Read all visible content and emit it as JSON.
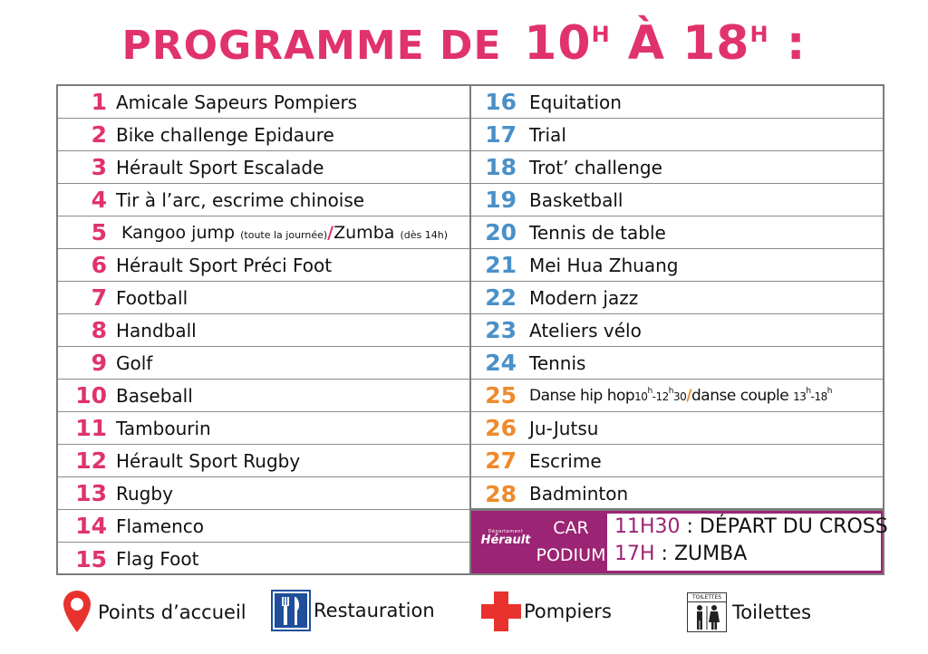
{
  "title": {
    "prefix": "PROGRAMME DE",
    "start": "10",
    "start_sup": "H",
    "a": "À",
    "end": "18",
    "end_sup": "H",
    "colon": ":"
  },
  "colors": {
    "pink": "#e0336b",
    "blue": "#4a90c8",
    "orange": "#ee8a2c",
    "purple": "#9c2474"
  },
  "left_items": [
    {
      "num": "1",
      "label": "Amicale Sapeurs Pompiers"
    },
    {
      "num": "2",
      "label": "Bike challenge Epidaure"
    },
    {
      "num": "3",
      "label": "Hérault Sport Escalade"
    },
    {
      "num": "4",
      "label": "Tir à l’arc, escrime chinoise"
    },
    {
      "num": "5",
      "part1": "Kangoo jump",
      "note1": "(toute la journée)",
      "sep": "/",
      "part2": "Zumba",
      "note2": "(dès 14h)"
    },
    {
      "num": "6",
      "label": "Hérault Sport Préci Foot"
    },
    {
      "num": "7",
      "label": "Football"
    },
    {
      "num": "8",
      "label": "Handball"
    },
    {
      "num": "9",
      "label": "Golf"
    },
    {
      "num": "10",
      "label": "Baseball"
    },
    {
      "num": "11",
      "label": "Tambourin"
    },
    {
      "num": "12",
      "label": "Hérault Sport Rugby"
    },
    {
      "num": "13",
      "label": "Rugby"
    },
    {
      "num": "14",
      "label": "Flamenco"
    },
    {
      "num": "15",
      "label": "Flag Foot"
    }
  ],
  "right_items": [
    {
      "num": "16",
      "label": "Equitation"
    },
    {
      "num": "17",
      "label": "Trial"
    },
    {
      "num": "18",
      "label": "Trot’ challenge"
    },
    {
      "num": "19",
      "label": "Basketball"
    },
    {
      "num": "20",
      "label": "Tennis de table"
    },
    {
      "num": "21",
      "label": "Mei Hua Zhuang"
    },
    {
      "num": "22",
      "label": "Modern jazz"
    },
    {
      "num": "23",
      "label": "Ateliers vélo"
    },
    {
      "num": "24",
      "label": "Tennis"
    },
    {
      "num": "25",
      "part1": "Danse hip hop",
      "t1a": "10",
      "t1a_sup": "h",
      "t1b": "-12",
      "t1b_sup": "h",
      "t1c": "30",
      "sep": "/",
      "part2": "danse couple",
      "t2a": "13",
      "t2a_sup": "h",
      "t2b": "-18",
      "t2b_sup": "h"
    },
    {
      "num": "26",
      "label": "Ju-Jutsu"
    },
    {
      "num": "27",
      "label": "Escrime"
    },
    {
      "num": "28",
      "label": "Badminton"
    }
  ],
  "podium": {
    "logo_small": "Département",
    "logo_name": "Hérault",
    "car": "CAR",
    "podium": "PODIUM",
    "events": [
      {
        "time": "11H30",
        "text": " : DÉPART DU CROSS"
      },
      {
        "time": "17H",
        "text": " : ZUMBA"
      }
    ]
  },
  "legend": {
    "accueil": "Points d’accueil",
    "restauration": "Restauration",
    "pompiers": "Pompiers",
    "toilettes_sign": "TOILETTES",
    "toilettes": "Toilettes"
  }
}
